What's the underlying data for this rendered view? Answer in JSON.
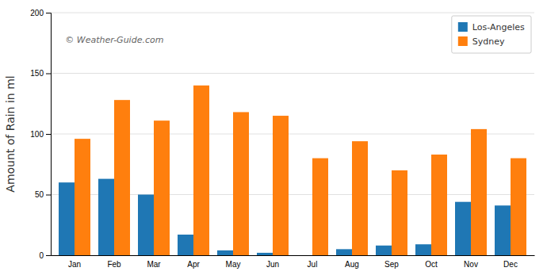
{
  "chart_data": {
    "type": "bar",
    "categories": [
      "Jan",
      "Feb",
      "Mar",
      "Apr",
      "May",
      "Jun",
      "Jul",
      "Aug",
      "Sep",
      "Oct",
      "Nov",
      "Dec"
    ],
    "series": [
      {
        "name": "Los-Angeles",
        "values": [
          60,
          63,
          50,
          17,
          4,
          2,
          0,
          5,
          8,
          9,
          44,
          41
        ]
      },
      {
        "name": "Sydney",
        "values": [
          96,
          128,
          111,
          140,
          118,
          115,
          80,
          94,
          70,
          83,
          104,
          80
        ]
      }
    ],
    "y_label": "Amount of Rain in ml",
    "annotations": [
      "© Weather-Guide.com"
    ],
    "ylim": [
      0,
      200
    ],
    "yticks": [
      0,
      50,
      100,
      150,
      200
    ],
    "grid": true,
    "legend": "upper right"
  }
}
